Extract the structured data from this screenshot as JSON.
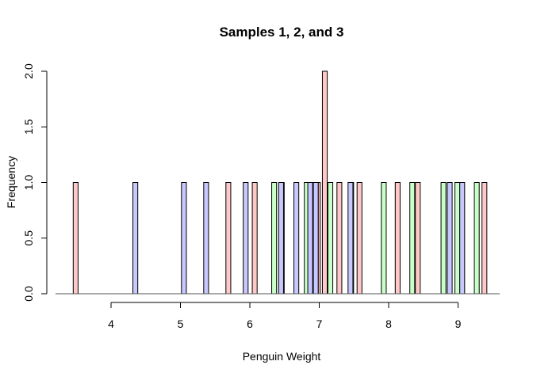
{
  "chart_data": {
    "type": "histogram",
    "title": "Samples 1, 2, and 3",
    "xlabel": "Penguin Weight",
    "ylabel": "Frequency",
    "xlim": [
      3.2,
      9.6
    ],
    "ylim": [
      0,
      2
    ],
    "grid": false,
    "legend": "none",
    "bin_width": 0.07,
    "x_ticks": [
      4,
      5,
      6,
      7,
      8,
      9
    ],
    "x_tick_labels": [
      "4",
      "5",
      "6",
      "7",
      "8",
      "9"
    ],
    "y_ticks": [
      0,
      0.5,
      1,
      1.5,
      2
    ],
    "y_tick_labels": [
      "0.0",
      "0.5",
      "1.0",
      "1.5",
      "2.0"
    ],
    "series": [
      {
        "color": "#ffc8c8",
        "bars": [
          {
            "x": 3.49,
            "count": 1
          },
          {
            "x": 5.69,
            "count": 1
          },
          {
            "x": 6.07,
            "count": 1
          },
          {
            "x": 6.98,
            "count": 1
          },
          {
            "x": 7.08,
            "count": 2
          },
          {
            "x": 7.29,
            "count": 1
          },
          {
            "x": 7.58,
            "count": 1
          },
          {
            "x": 8.13,
            "count": 1
          },
          {
            "x": 8.42,
            "count": 1
          },
          {
            "x": 9.38,
            "count": 1
          }
        ]
      },
      {
        "color": "#c8ffc8",
        "bars": [
          {
            "x": 6.35,
            "count": 1
          },
          {
            "x": 6.46,
            "count": 1
          },
          {
            "x": 6.82,
            "count": 1
          },
          {
            "x": 6.95,
            "count": 1
          },
          {
            "x": 7.16,
            "count": 1
          },
          {
            "x": 7.46,
            "count": 1
          },
          {
            "x": 7.93,
            "count": 1
          },
          {
            "x": 8.34,
            "count": 1
          },
          {
            "x": 8.79,
            "count": 1
          },
          {
            "x": 8.99,
            "count": 1
          },
          {
            "x": 9.27,
            "count": 1
          }
        ]
      },
      {
        "color": "#c8c8ff",
        "bars": [
          {
            "x": 4.35,
            "count": 1
          },
          {
            "x": 5.05,
            "count": 1
          },
          {
            "x": 5.37,
            "count": 1
          },
          {
            "x": 5.94,
            "count": 1
          },
          {
            "x": 6.45,
            "count": 1
          },
          {
            "x": 6.67,
            "count": 1
          },
          {
            "x": 6.87,
            "count": 1
          },
          {
            "x": 6.95,
            "count": 1
          },
          {
            "x": 7.45,
            "count": 1
          },
          {
            "x": 8.88,
            "count": 1
          },
          {
            "x": 9.06,
            "count": 1
          }
        ]
      }
    ]
  }
}
